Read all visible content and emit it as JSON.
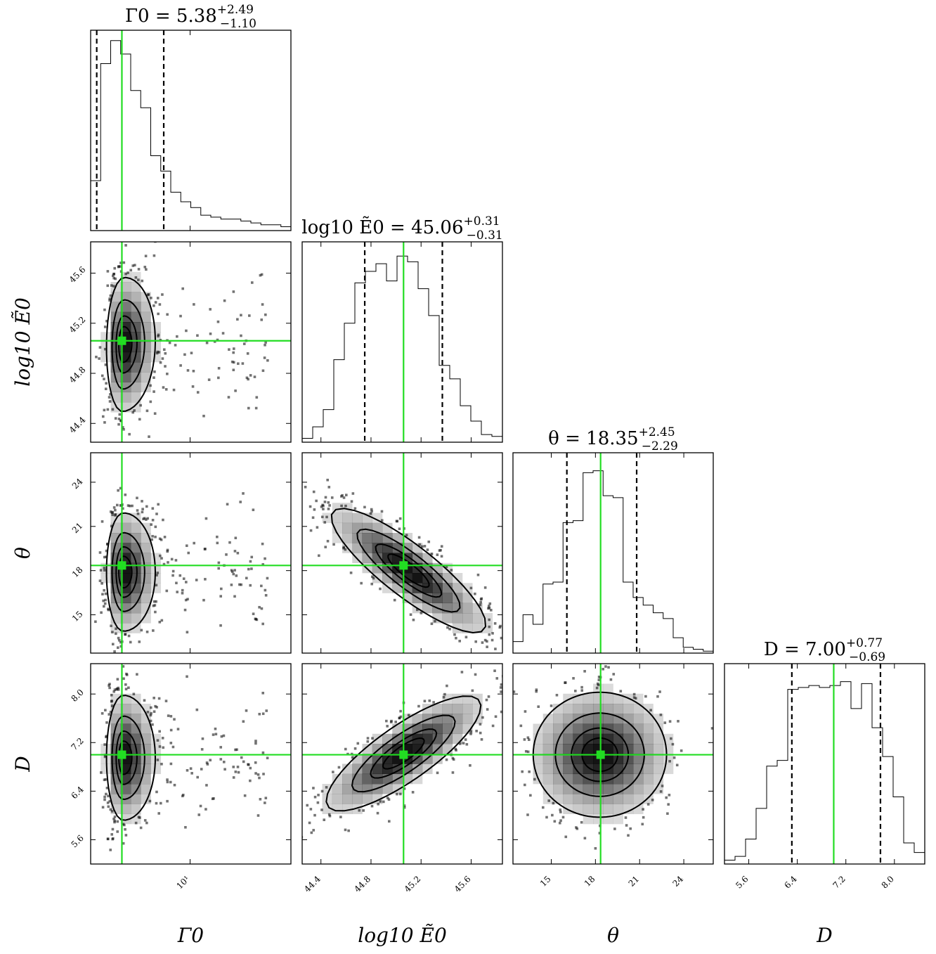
{
  "colors": {
    "truth": "#22dd22",
    "ink": "#000000",
    "density": "#000000"
  },
  "chart_data": {
    "type": "corner",
    "parameters": [
      {
        "key": "gamma",
        "axis_label": "Γ0",
        "title_value": "5.38",
        "err_plus": "+2.49",
        "err_minus": "−1.10",
        "title_symbol": "Γ0",
        "range": [
          4.05,
          25.0
        ],
        "log_scale": true,
        "truth": 5.38,
        "quantiles": [
          4.28,
          7.87
        ],
        "ticks": [
          {
            "v": 10,
            "label": "10¹"
          }
        ],
        "hist": [
          0.26,
          0.87,
          0.99,
          0.92,
          0.73,
          0.64,
          0.39,
          0.31,
          0.2,
          0.15,
          0.12,
          0.08,
          0.07,
          0.06,
          0.06,
          0.05,
          0.04,
          0.03,
          0.03,
          0.02
        ]
      },
      {
        "key": "logE",
        "axis_label": "log10 Ẽ0",
        "title_value": "45.06",
        "err_plus": "+0.31",
        "err_minus": "−0.31",
        "title_symbol": "log10 Ẽ0",
        "range": [
          44.25,
          45.85
        ],
        "log_scale": false,
        "truth": 45.06,
        "quantiles": [
          44.75,
          45.37
        ],
        "ticks": [
          {
            "v": 44.4,
            "label": "44.4"
          },
          {
            "v": 44.8,
            "label": "44.8"
          },
          {
            "v": 45.2,
            "label": "45.2"
          },
          {
            "v": 45.6,
            "label": "45.6"
          }
        ],
        "hist": [
          0.02,
          0.08,
          0.17,
          0.43,
          0.62,
          0.83,
          0.89,
          0.93,
          0.84,
          0.97,
          0.94,
          0.8,
          0.66,
          0.4,
          0.33,
          0.19,
          0.11,
          0.04,
          0.03
        ]
      },
      {
        "key": "theta",
        "axis_label": "θ",
        "title_value": "18.35",
        "err_plus": "+2.45",
        "err_minus": "−2.29",
        "title_symbol": "θ",
        "range": [
          12.4,
          26.0
        ],
        "log_scale": false,
        "truth": 18.35,
        "quantiles": [
          16.06,
          20.8
        ],
        "ticks": [
          {
            "v": 15,
            "label": "15"
          },
          {
            "v": 18,
            "label": "18"
          },
          {
            "v": 21,
            "label": "21"
          },
          {
            "v": 24,
            "label": "24"
          }
        ],
        "hist": [
          0.06,
          0.2,
          0.15,
          0.36,
          0.37,
          0.68,
          0.69,
          0.94,
          0.95,
          0.82,
          0.81,
          0.37,
          0.29,
          0.25,
          0.21,
          0.18,
          0.08,
          0.03,
          0.02,
          0.01
        ]
      },
      {
        "key": "D",
        "axis_label": "D",
        "title_value": "7.00",
        "err_plus": "+0.77",
        "err_minus": "−0.69",
        "title_symbol": "D",
        "range": [
          5.2,
          8.5
        ],
        "log_scale": false,
        "truth": 7.0,
        "quantiles": [
          6.31,
          7.77
        ],
        "ticks": [
          {
            "v": 5.6,
            "label": "5.6"
          },
          {
            "v": 6.4,
            "label": "6.4"
          },
          {
            "v": 7.2,
            "label": "7.2"
          },
          {
            "v": 8.0,
            "label": "8.0"
          }
        ],
        "hist": [
          0.02,
          0.04,
          0.13,
          0.29,
          0.51,
          0.54,
          0.91,
          0.92,
          0.93,
          0.92,
          0.93,
          0.95,
          0.81,
          0.94,
          0.71,
          0.56,
          0.35,
          0.11,
          0.06
        ]
      }
    ],
    "pairs": [
      {
        "row": 1,
        "col": 0,
        "mu": [
          5.45,
          45.03
        ],
        "sd": [
          0.42,
          0.26
        ],
        "rho": 0.05,
        "skew_x": true
      },
      {
        "row": 2,
        "col": 0,
        "mu": [
          5.45,
          17.9
        ],
        "sd": [
          0.42,
          1.95
        ],
        "rho": 0.0,
        "skew_x": true
      },
      {
        "row": 2,
        "col": 1,
        "mu": [
          45.1,
          18.0
        ],
        "sd": [
          0.3,
          2.05
        ],
        "rho": -0.86,
        "skew_x": false
      },
      {
        "row": 3,
        "col": 0,
        "mu": [
          5.45,
          6.95
        ],
        "sd": [
          0.42,
          0.5
        ],
        "rho": 0.0,
        "skew_x": true
      },
      {
        "row": 3,
        "col": 1,
        "mu": [
          45.06,
          7.02
        ],
        "sd": [
          0.3,
          0.46
        ],
        "rho": 0.82,
        "skew_x": false
      },
      {
        "row": 3,
        "col": 2,
        "mu": [
          18.3,
          7.0
        ],
        "sd": [
          2.2,
          0.5
        ],
        "rho": 0.0,
        "skew_x": false
      }
    ],
    "contour_levels": [
      0.12,
      0.39,
      0.68,
      0.86
    ],
    "grid": false
  }
}
